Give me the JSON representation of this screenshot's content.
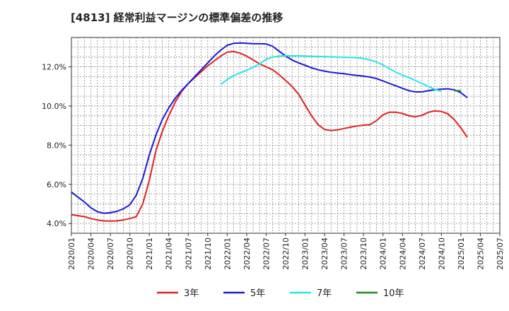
{
  "chart_data": {
    "type": "line",
    "title": "[4813]  経常利益マージンの標準偏差の推移",
    "xlabel": "",
    "ylabel": "",
    "ylim": [
      3.5,
      13.5
    ],
    "yticks": [
      "4.0%",
      "6.0%",
      "8.0%",
      "10.0%",
      "12.0%"
    ],
    "ytick_values": [
      4,
      6,
      8,
      10,
      12
    ],
    "xticks": [
      "2020/01",
      "2020/04",
      "2020/07",
      "2020/10",
      "2021/01",
      "2021/04",
      "2021/07",
      "2021/10",
      "2022/01",
      "2022/04",
      "2022/07",
      "2022/10",
      "2023/01",
      "2023/04",
      "2023/07",
      "2023/10",
      "2024/01",
      "2024/04",
      "2024/07",
      "2024/10",
      "2025/01",
      "2025/04",
      "2025/07"
    ],
    "grid": true,
    "legend_placement": "bottom",
    "series": [
      {
        "name": "3年",
        "color": "#e02020",
        "start": "2020/01",
        "values": [
          4.45,
          4.4,
          4.35,
          4.25,
          4.18,
          4.13,
          4.12,
          4.13,
          4.18,
          4.25,
          4.35,
          5.0,
          6.2,
          7.7,
          8.7,
          9.5,
          10.2,
          10.75,
          11.15,
          11.45,
          11.75,
          12.05,
          12.3,
          12.55,
          12.75,
          12.78,
          12.7,
          12.55,
          12.35,
          12.15,
          12.0,
          11.85,
          11.6,
          11.3,
          11.0,
          10.6,
          10.05,
          9.5,
          9.05,
          8.8,
          8.75,
          8.78,
          8.85,
          8.92,
          8.98,
          9.02,
          9.05,
          9.25,
          9.55,
          9.68,
          9.68,
          9.62,
          9.5,
          9.45,
          9.52,
          9.68,
          9.75,
          9.72,
          9.6,
          9.3,
          8.88,
          8.4
        ]
      },
      {
        "name": "5年",
        "color": "#1a1ad6",
        "start": "2020/01",
        "values": [
          5.6,
          5.35,
          5.1,
          4.8,
          4.6,
          4.52,
          4.55,
          4.62,
          4.75,
          4.95,
          5.45,
          6.3,
          7.5,
          8.5,
          9.3,
          9.9,
          10.4,
          10.8,
          11.15,
          11.5,
          11.85,
          12.2,
          12.55,
          12.85,
          13.1,
          13.2,
          13.22,
          13.2,
          13.18,
          13.18,
          13.17,
          13.05,
          12.8,
          12.55,
          12.35,
          12.2,
          12.08,
          11.95,
          11.85,
          11.78,
          11.72,
          11.68,
          11.65,
          11.6,
          11.56,
          11.52,
          11.48,
          11.4,
          11.28,
          11.15,
          11.03,
          10.9,
          10.78,
          10.72,
          10.72,
          10.78,
          10.83,
          10.86,
          10.88,
          10.82,
          10.68,
          10.42
        ]
      },
      {
        "name": "7年",
        "color": "#22e6ee",
        "start": "2021/12",
        "values": [
          11.1,
          11.35,
          11.55,
          11.7,
          11.82,
          11.98,
          12.15,
          12.38,
          12.5,
          12.55,
          12.56,
          12.56,
          12.56,
          12.55,
          12.54,
          12.53,
          12.52,
          12.51,
          12.5,
          12.49,
          12.48,
          12.46,
          12.42,
          12.35,
          12.25,
          12.1,
          11.9,
          11.72,
          11.58,
          11.45,
          11.3,
          11.15,
          11.0,
          10.85,
          10.75
        ]
      },
      {
        "name": "10年",
        "color": "#1e8a1e",
        "start": "2024/12",
        "values": [
          10.78,
          10.78
        ]
      }
    ]
  }
}
